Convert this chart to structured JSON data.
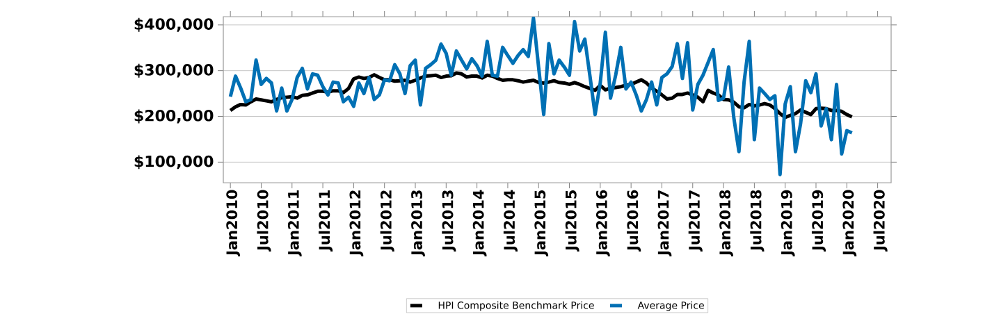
{
  "chart_data": {
    "type": "line",
    "x": [
      "2010-01",
      "2010-02",
      "2010-03",
      "2010-04",
      "2010-05",
      "2010-06",
      "2010-07",
      "2010-08",
      "2010-09",
      "2010-10",
      "2010-11",
      "2010-12",
      "2011-01",
      "2011-02",
      "2011-03",
      "2011-04",
      "2011-05",
      "2011-06",
      "2011-07",
      "2011-08",
      "2011-09",
      "2011-10",
      "2011-11",
      "2011-12",
      "2012-01",
      "2012-02",
      "2012-03",
      "2012-04",
      "2012-05",
      "2012-06",
      "2012-07",
      "2012-08",
      "2012-09",
      "2012-10",
      "2012-11",
      "2012-12",
      "2013-01",
      "2013-02",
      "2013-03",
      "2013-04",
      "2013-05",
      "2013-06",
      "2013-07",
      "2013-08",
      "2013-09",
      "2013-10",
      "2013-11",
      "2013-12",
      "2014-01",
      "2014-02",
      "2014-03",
      "2014-04",
      "2014-05",
      "2014-06",
      "2014-07",
      "2014-08",
      "2014-09",
      "2014-10",
      "2014-11",
      "2014-12",
      "2015-01",
      "2015-02",
      "2015-03",
      "2015-04",
      "2015-05",
      "2015-06",
      "2015-07",
      "2015-08",
      "2015-09",
      "2015-10",
      "2015-11",
      "2015-12",
      "2016-01",
      "2016-02",
      "2016-03",
      "2016-04",
      "2016-05",
      "2016-06",
      "2016-07",
      "2016-08",
      "2016-09",
      "2016-10",
      "2016-11",
      "2016-12",
      "2017-01",
      "2017-02",
      "2017-03",
      "2017-04",
      "2017-05",
      "2017-06",
      "2017-07",
      "2017-08",
      "2017-09",
      "2017-10",
      "2017-11",
      "2017-12",
      "2018-01",
      "2018-02",
      "2018-03",
      "2018-04",
      "2018-05",
      "2018-06",
      "2018-07",
      "2018-08",
      "2018-09",
      "2018-10",
      "2018-11",
      "2018-12",
      "2019-01",
      "2019-02",
      "2019-03",
      "2019-04",
      "2019-05",
      "2019-06",
      "2019-07",
      "2019-08",
      "2019-09",
      "2019-10",
      "2019-11",
      "2019-12",
      "2020-01",
      "2020-02"
    ],
    "series": [
      {
        "name": "HPI Composite Benchmark Price",
        "color": "#000000",
        "values": [
          213000,
          221000,
          226000,
          225000,
          232000,
          238000,
          236000,
          234000,
          232000,
          237000,
          241000,
          242000,
          243000,
          240000,
          246000,
          247000,
          251000,
          255000,
          255000,
          253000,
          256000,
          256000,
          252000,
          261000,
          282000,
          286000,
          283000,
          285000,
          291000,
          285000,
          280000,
          280000,
          277000,
          278000,
          279000,
          275000,
          279000,
          284000,
          288000,
          289000,
          290000,
          285000,
          288000,
          289000,
          295000,
          293000,
          286000,
          288000,
          288000,
          284000,
          290000,
          288000,
          283000,
          279000,
          280000,
          280000,
          278000,
          275000,
          277000,
          279000,
          274000,
          273000,
          275000,
          278000,
          274000,
          273000,
          270000,
          274000,
          270000,
          265000,
          261000,
          257000,
          268000,
          258000,
          262000,
          263000,
          265000,
          268000,
          270000,
          275000,
          280000,
          273000,
          262000,
          255000,
          247000,
          238000,
          240000,
          248000,
          248000,
          251000,
          247000,
          242000,
          232000,
          257000,
          251000,
          247000,
          237000,
          236000,
          231000,
          221000,
          219000,
          226000,
          223000,
          225000,
          228000,
          225000,
          217000,
          206000,
          198000,
          202000,
          206000,
          214000,
          209000,
          204000,
          217000,
          218000,
          217000,
          213000,
          213000,
          211000,
          204000,
          199000
        ]
      },
      {
        "name": "Average Price",
        "color": "#0070b4",
        "values": [
          243000,
          288000,
          262000,
          232000,
          237000,
          323000,
          270000,
          283000,
          273000,
          212000,
          262000,
          212000,
          237000,
          285000,
          305000,
          260000,
          293000,
          290000,
          265000,
          247000,
          275000,
          273000,
          232000,
          242000,
          222000,
          273000,
          250000,
          285000,
          237000,
          247000,
          280000,
          278000,
          313000,
          293000,
          250000,
          311000,
          323000,
          225000,
          305000,
          313000,
          323000,
          358000,
          338000,
          290000,
          343000,
          323000,
          304000,
          326000,
          311000,
          288000,
          364000,
          290000,
          288000,
          351000,
          333000,
          316000,
          333000,
          346000,
          331000,
          415000,
          308000,
          204000,
          359000,
          293000,
          323000,
          308000,
          290000,
          407000,
          343000,
          369000,
          288000,
          204000,
          273000,
          384000,
          240000,
          290000,
          351000,
          260000,
          275000,
          247000,
          212000,
          237000,
          275000,
          225000,
          285000,
          293000,
          309000,
          359000,
          283000,
          361000,
          214000,
          270000,
          290000,
          318000,
          346000,
          235000,
          240000,
          308000,
          197000,
          123000,
          275000,
          364000,
          149000,
          262000,
          250000,
          237000,
          245000,
          73000,
          227000,
          265000,
          123000,
          184000,
          278000,
          252000,
          293000,
          179000,
          217000,
          149000,
          270000,
          118000,
          169000,
          164000
        ]
      }
    ],
    "xlim": [
      "2009-11-20",
      "2020-09-20"
    ],
    "xticks": [
      {
        "value": "2010-01",
        "label": "Jan2010"
      },
      {
        "value": "2010-07",
        "label": "Jul2010"
      },
      {
        "value": "2011-01",
        "label": "Jan2011"
      },
      {
        "value": "2011-07",
        "label": "Jul2011"
      },
      {
        "value": "2012-01",
        "label": "Jan2012"
      },
      {
        "value": "2012-07",
        "label": "Jul2012"
      },
      {
        "value": "2013-01",
        "label": "Jan2013"
      },
      {
        "value": "2013-07",
        "label": "Jul2013"
      },
      {
        "value": "2014-01",
        "label": "Jan2014"
      },
      {
        "value": "2014-07",
        "label": "Jul2014"
      },
      {
        "value": "2015-01",
        "label": "Jan2015"
      },
      {
        "value": "2015-07",
        "label": "Jul2015"
      },
      {
        "value": "2016-01",
        "label": "Jan2016"
      },
      {
        "value": "2016-07",
        "label": "Jul2016"
      },
      {
        "value": "2017-01",
        "label": "Jan2017"
      },
      {
        "value": "2017-07",
        "label": "Jul2017"
      },
      {
        "value": "2018-01",
        "label": "Jan2018"
      },
      {
        "value": "2018-07",
        "label": "Jul2018"
      },
      {
        "value": "2019-01",
        "label": "Jan2019"
      },
      {
        "value": "2019-07",
        "label": "Jul2019"
      },
      {
        "value": "2020-01",
        "label": "Jan2020"
      },
      {
        "value": "2020-07",
        "label": "Jul2020"
      }
    ],
    "ylim": [
      55000,
      418000
    ],
    "yticks": [
      {
        "value": 100000,
        "label": "$100,000"
      },
      {
        "value": 200000,
        "label": "$200,000"
      },
      {
        "value": 300000,
        "label": "$300,000"
      },
      {
        "value": 400000,
        "label": "$400,000"
      }
    ],
    "grid": "y",
    "legend": "bottom",
    "marker": "none",
    "line_style": "solid"
  }
}
